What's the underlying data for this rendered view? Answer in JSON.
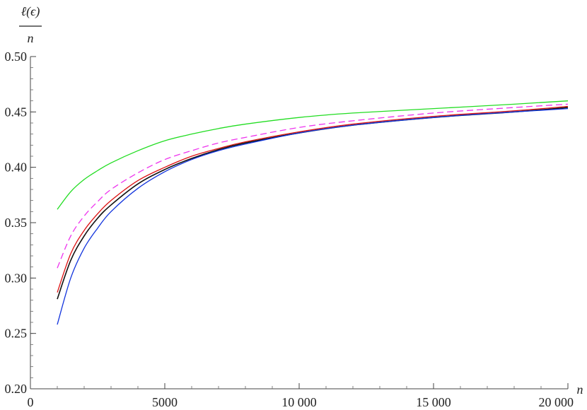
{
  "chart_data": {
    "type": "line",
    "xlabel": "n",
    "ylabel_numerator": "ℓ(ϵ)",
    "ylabel_denominator": "n",
    "xlim": [
      0,
      20000
    ],
    "ylim": [
      0.2,
      0.5
    ],
    "x_ticks": [
      0,
      5000,
      10000,
      15000,
      20000
    ],
    "x_tick_labels": [
      "0",
      "5000",
      "10 000",
      "15 000",
      "20 000"
    ],
    "y_ticks": [
      0.2,
      0.25,
      0.3,
      0.35,
      0.4,
      0.45,
      0.5
    ],
    "y_tick_labels": [
      "0.20",
      "0.25",
      "0.30",
      "0.35",
      "0.40",
      "0.45",
      "0.50"
    ],
    "x_minor_step": 1000,
    "y_minor_step": 0.01,
    "grid": false,
    "x": [
      1000,
      1500,
      2000,
      2500,
      3000,
      4000,
      5000,
      6000,
      7000,
      8000,
      10000,
      12000,
      15000,
      18000,
      20000
    ],
    "series": [
      {
        "color": "#22dd22",
        "dash": "solid",
        "values": [
          0.362,
          0.378,
          0.389,
          0.397,
          0.404,
          0.415,
          0.424,
          0.43,
          0.435,
          0.439,
          0.445,
          0.449,
          0.453,
          0.457,
          0.46
        ]
      },
      {
        "color": "#ee33ee",
        "dash": "dashed",
        "values": [
          0.309,
          0.338,
          0.356,
          0.369,
          0.38,
          0.395,
          0.407,
          0.415,
          0.422,
          0.427,
          0.436,
          0.442,
          0.449,
          0.454,
          0.457
        ]
      },
      {
        "color": "#dd1111",
        "dash": "solid",
        "values": [
          0.287,
          0.322,
          0.343,
          0.358,
          0.37,
          0.388,
          0.4,
          0.41,
          0.417,
          0.423,
          0.432,
          0.439,
          0.446,
          0.451,
          0.455
        ]
      },
      {
        "color": "#111111",
        "dash": "solid",
        "values": [
          0.281,
          0.316,
          0.338,
          0.354,
          0.366,
          0.385,
          0.398,
          0.408,
          0.416,
          0.422,
          0.431,
          0.438,
          0.445,
          0.45,
          0.454
        ]
      },
      {
        "color": "#1133dd",
        "dash": "solid",
        "values": [
          0.258,
          0.3,
          0.327,
          0.345,
          0.36,
          0.381,
          0.396,
          0.407,
          0.415,
          0.421,
          0.431,
          0.438,
          0.445,
          0.45,
          0.453
        ]
      }
    ]
  }
}
